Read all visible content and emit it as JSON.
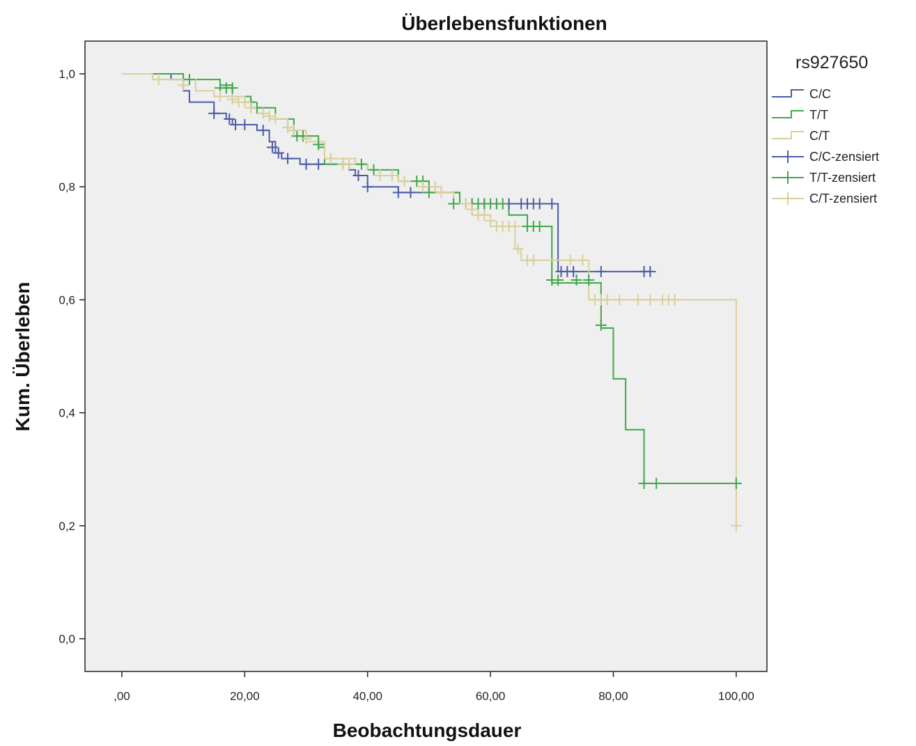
{
  "chart_data": {
    "type": "line",
    "title": "Überlebensfunktionen",
    "xlabel": "Beobachtungsdauer",
    "ylabel": "Kum. Überleben",
    "xlim": [
      -6,
      105
    ],
    "ylim": [
      -0.058,
      1.058
    ],
    "x_ticks": [
      0,
      20,
      40,
      60,
      80,
      100
    ],
    "x_tick_labels": [
      ",00",
      "20,00",
      "40,00",
      "60,00",
      "80,00",
      "100,00"
    ],
    "y_ticks": [
      0.0,
      0.2,
      0.4,
      0.6,
      0.8,
      1.0
    ],
    "y_tick_labels": [
      "0,0",
      "0,2",
      "0,4",
      "0,6",
      "0,8",
      "1,0"
    ],
    "legend_title": "rs927650",
    "legend_position": "right",
    "grid": false,
    "series": [
      {
        "name": "C/C",
        "color": "#4a5aa8",
        "steps": [
          [
            0,
            1.0
          ],
          [
            8,
            0.99
          ],
          [
            10,
            0.97
          ],
          [
            11,
            0.95
          ],
          [
            15,
            0.93
          ],
          [
            17,
            0.92
          ],
          [
            18,
            0.91
          ],
          [
            22,
            0.9
          ],
          [
            24,
            0.88
          ],
          [
            25,
            0.86
          ],
          [
            26,
            0.85
          ],
          [
            29,
            0.84
          ],
          [
            37,
            0.83
          ],
          [
            38,
            0.82
          ],
          [
            40,
            0.8
          ],
          [
            45,
            0.79
          ],
          [
            50,
            0.79
          ],
          [
            55,
            0.77
          ],
          [
            71,
            0.65
          ],
          [
            86,
            0.65
          ]
        ],
        "censored": [
          [
            15,
            0.93
          ],
          [
            17.5,
            0.92
          ],
          [
            18.5,
            0.91
          ],
          [
            20,
            0.91
          ],
          [
            23,
            0.9
          ],
          [
            24.5,
            0.87
          ],
          [
            25.5,
            0.86
          ],
          [
            27,
            0.85
          ],
          [
            30,
            0.84
          ],
          [
            32,
            0.84
          ],
          [
            38.5,
            0.82
          ],
          [
            40,
            0.8
          ],
          [
            45,
            0.79
          ],
          [
            47,
            0.79
          ],
          [
            57,
            0.77
          ],
          [
            59,
            0.77
          ],
          [
            61,
            0.77
          ],
          [
            63,
            0.77
          ],
          [
            65,
            0.77
          ],
          [
            66,
            0.77
          ],
          [
            67,
            0.77
          ],
          [
            68,
            0.77
          ],
          [
            70,
            0.77
          ],
          [
            71.5,
            0.65
          ],
          [
            72.5,
            0.65
          ],
          [
            73.5,
            0.65
          ],
          [
            78,
            0.65
          ],
          [
            85,
            0.65
          ],
          [
            86,
            0.65
          ]
        ]
      },
      {
        "name": "T/T",
        "color": "#3fa64a",
        "steps": [
          [
            0,
            1.0
          ],
          [
            10,
            0.99
          ],
          [
            16,
            0.98
          ],
          [
            18,
            0.96
          ],
          [
            21,
            0.94
          ],
          [
            25,
            0.92
          ],
          [
            28,
            0.89
          ],
          [
            32,
            0.87
          ],
          [
            33,
            0.84
          ],
          [
            40,
            0.83
          ],
          [
            45,
            0.81
          ],
          [
            48,
            0.81
          ],
          [
            50,
            0.79
          ],
          [
            55,
            0.77
          ],
          [
            63,
            0.75
          ],
          [
            66,
            0.73
          ],
          [
            70,
            0.63
          ],
          [
            76,
            0.63
          ],
          [
            78,
            0.55
          ],
          [
            80,
            0.46
          ],
          [
            82,
            0.37
          ],
          [
            85,
            0.275
          ],
          [
            100,
            0.275
          ]
        ],
        "censored": [
          [
            11,
            0.99
          ],
          [
            16,
            0.975
          ],
          [
            17,
            0.975
          ],
          [
            18,
            0.975
          ],
          [
            21,
            0.95
          ],
          [
            22,
            0.94
          ],
          [
            28.5,
            0.89
          ],
          [
            29.5,
            0.89
          ],
          [
            32,
            0.875
          ],
          [
            36,
            0.84
          ],
          [
            39,
            0.84
          ],
          [
            41,
            0.83
          ],
          [
            48,
            0.81
          ],
          [
            49,
            0.81
          ],
          [
            50,
            0.79
          ],
          [
            54,
            0.77
          ],
          [
            56,
            0.77
          ],
          [
            57,
            0.77
          ],
          [
            58,
            0.77
          ],
          [
            59,
            0.77
          ],
          [
            60,
            0.77
          ],
          [
            61,
            0.77
          ],
          [
            62,
            0.77
          ],
          [
            66,
            0.73
          ],
          [
            67,
            0.73
          ],
          [
            68,
            0.73
          ],
          [
            70,
            0.635
          ],
          [
            71,
            0.635
          ],
          [
            74,
            0.635
          ],
          [
            76,
            0.635
          ],
          [
            78,
            0.555
          ],
          [
            85,
            0.275
          ],
          [
            87,
            0.275
          ],
          [
            100,
            0.275
          ]
        ]
      },
      {
        "name": "C/T",
        "color": "#d9cf99",
        "steps": [
          [
            0,
            1.0
          ],
          [
            5,
            0.99
          ],
          [
            12,
            0.97
          ],
          [
            15,
            0.96
          ],
          [
            20,
            0.95
          ],
          [
            22,
            0.93
          ],
          [
            24,
            0.92
          ],
          [
            27,
            0.9
          ],
          [
            30,
            0.88
          ],
          [
            33,
            0.85
          ],
          [
            38,
            0.84
          ],
          [
            40,
            0.83
          ],
          [
            42,
            0.82
          ],
          [
            45,
            0.81
          ],
          [
            49,
            0.8
          ],
          [
            52,
            0.79
          ],
          [
            54,
            0.77
          ],
          [
            57,
            0.75
          ],
          [
            60,
            0.73
          ],
          [
            64,
            0.69
          ],
          [
            65,
            0.67
          ],
          [
            72,
            0.67
          ],
          [
            76,
            0.6
          ],
          [
            100,
            0.6
          ],
          [
            100,
            0.2
          ]
        ],
        "censored": [
          [
            6,
            0.99
          ],
          [
            10,
            0.98
          ],
          [
            16,
            0.96
          ],
          [
            18,
            0.955
          ],
          [
            19,
            0.95
          ],
          [
            20,
            0.95
          ],
          [
            21,
            0.94
          ],
          [
            23,
            0.93
          ],
          [
            24,
            0.925
          ],
          [
            25,
            0.92
          ],
          [
            27,
            0.905
          ],
          [
            28,
            0.9
          ],
          [
            30,
            0.885
          ],
          [
            34,
            0.85
          ],
          [
            36,
            0.84
          ],
          [
            37,
            0.84
          ],
          [
            42,
            0.82
          ],
          [
            44,
            0.82
          ],
          [
            46,
            0.81
          ],
          [
            49,
            0.8
          ],
          [
            51,
            0.8
          ],
          [
            52,
            0.79
          ],
          [
            56,
            0.77
          ],
          [
            57,
            0.76
          ],
          [
            58,
            0.75
          ],
          [
            59,
            0.75
          ],
          [
            60,
            0.74
          ],
          [
            61,
            0.73
          ],
          [
            62,
            0.73
          ],
          [
            63,
            0.73
          ],
          [
            64,
            0.73
          ],
          [
            64.5,
            0.69
          ],
          [
            66,
            0.67
          ],
          [
            67,
            0.67
          ],
          [
            73,
            0.67
          ],
          [
            75,
            0.67
          ],
          [
            77,
            0.6
          ],
          [
            78,
            0.6
          ],
          [
            79,
            0.6
          ],
          [
            81,
            0.6
          ],
          [
            84,
            0.6
          ],
          [
            86,
            0.6
          ],
          [
            88,
            0.6
          ],
          [
            89,
            0.6
          ],
          [
            90,
            0.6
          ],
          [
            100,
            0.2
          ]
        ]
      }
    ],
    "legend_entries": [
      "C/C",
      "T/T",
      "C/T",
      "C/C-zensiert",
      "T/T-zensiert",
      "C/T-zensiert"
    ]
  }
}
